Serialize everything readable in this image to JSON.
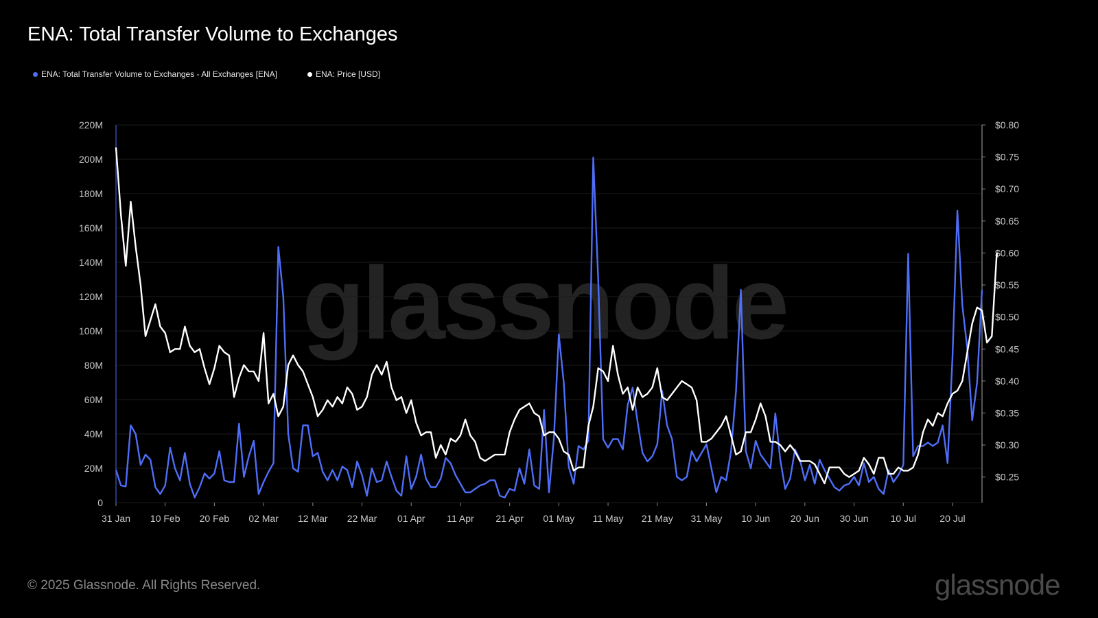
{
  "title": "ENA: Total Transfer Volume to Exchanges",
  "legend": [
    {
      "label": "ENA: Total Transfer Volume to Exchanges - All Exchanges [ENA]",
      "color": "#4f6ef7"
    },
    {
      "label": "ENA: Price [USD]",
      "color": "#ffffff"
    }
  ],
  "footer": "© 2025 Glassnode. All Rights Reserved.",
  "brand": "glassnode",
  "watermark": "glassnode",
  "chart_data": {
    "type": "line",
    "title": "ENA: Total Transfer Volume to Exchanges",
    "x_tick_labels": [
      "31 Jan",
      "10 Feb",
      "20 Feb",
      "02 Mar",
      "12 Mar",
      "22 Mar",
      "01 Apr",
      "11 Apr",
      "21 Apr",
      "01 May",
      "11 May",
      "21 May",
      "31 May",
      "10 Jun",
      "20 Jun",
      "30 Jun",
      "10 Jul",
      "20 Jul"
    ],
    "x_start": "2025-01-31",
    "x_end": "2025-07-27",
    "y_left_ticks": [
      "0",
      "20M",
      "40M",
      "60M",
      "80M",
      "100M",
      "120M",
      "140M",
      "160M",
      "180M",
      "200M",
      "220M"
    ],
    "y_left_range": [
      0,
      220
    ],
    "y_left_unit": "M ENA",
    "y_right_ticks": [
      "$0.25",
      "$0.30",
      "$0.35",
      "$0.40",
      "$0.45",
      "$0.50",
      "$0.55",
      "$0.60",
      "$0.65",
      "$0.70",
      "$0.75",
      "$0.80"
    ],
    "y_right_range": [
      0.21,
      0.8
    ],
    "grid": true,
    "series": [
      {
        "name": "ENA: Total Transfer Volume to Exchanges - All Exchanges [ENA]",
        "axis": "left",
        "color": "#4f6ef7",
        "values": [
          19,
          10,
          9.5,
          45,
          40,
          22,
          28,
          25,
          9,
          5,
          10,
          32,
          20,
          13,
          29,
          11,
          3,
          9,
          17,
          14,
          17,
          30,
          13,
          12,
          12,
          46,
          15,
          27,
          36,
          5,
          12,
          18,
          23,
          149,
          120,
          40,
          20,
          18,
          45,
          45,
          27,
          29,
          18,
          13,
          19,
          13,
          21,
          19,
          9,
          24,
          16,
          4,
          20,
          12,
          13,
          24,
          15,
          7,
          4,
          27,
          8,
          15,
          28,
          14,
          9,
          9,
          14,
          26,
          23,
          16,
          11,
          6,
          6,
          8,
          10,
          11,
          13,
          13,
          4,
          3,
          8,
          7,
          20,
          11,
          31,
          10,
          8,
          54,
          6,
          38,
          98,
          70,
          21,
          11,
          33,
          31,
          36,
          201,
          130,
          37,
          32,
          37,
          37,
          31,
          57,
          67,
          47,
          29,
          24,
          27,
          34,
          65,
          45,
          37,
          15,
          13,
          15,
          30,
          24,
          29,
          34,
          20,
          6,
          15,
          13,
          30,
          65,
          124,
          30,
          20,
          36,
          28,
          24,
          20,
          52,
          25,
          8,
          14,
          31,
          25,
          13,
          22,
          11,
          25,
          19,
          14,
          9,
          7,
          10,
          11,
          15,
          10,
          23,
          12,
          15,
          8,
          5,
          19,
          12,
          16,
          22,
          145,
          27,
          33,
          33,
          35,
          33,
          35,
          45,
          23,
          85,
          170,
          115,
          90,
          48,
          70,
          124
        ]
      },
      {
        "name": "ENA: Price [USD]",
        "axis": "right",
        "color": "#ffffff",
        "values": [
          0.765,
          0.66,
          0.58,
          0.68,
          0.61,
          0.55,
          0.47,
          0.495,
          0.52,
          0.485,
          0.475,
          0.445,
          0.45,
          0.45,
          0.485,
          0.455,
          0.445,
          0.45,
          0.42,
          0.395,
          0.42,
          0.455,
          0.445,
          0.44,
          0.375,
          0.405,
          0.425,
          0.415,
          0.415,
          0.4,
          0.475,
          0.365,
          0.38,
          0.345,
          0.36,
          0.425,
          0.44,
          0.425,
          0.415,
          0.395,
          0.375,
          0.345,
          0.355,
          0.37,
          0.36,
          0.375,
          0.365,
          0.39,
          0.38,
          0.355,
          0.36,
          0.375,
          0.41,
          0.425,
          0.41,
          0.43,
          0.39,
          0.37,
          0.375,
          0.35,
          0.37,
          0.335,
          0.315,
          0.32,
          0.32,
          0.28,
          0.3,
          0.285,
          0.31,
          0.305,
          0.315,
          0.34,
          0.315,
          0.305,
          0.28,
          0.275,
          0.28,
          0.285,
          0.285,
          0.285,
          0.32,
          0.34,
          0.355,
          0.36,
          0.365,
          0.35,
          0.345,
          0.315,
          0.32,
          0.32,
          0.31,
          0.29,
          0.285,
          0.26,
          0.265,
          0.265,
          0.33,
          0.36,
          0.42,
          0.415,
          0.4,
          0.455,
          0.41,
          0.38,
          0.39,
          0.355,
          0.39,
          0.375,
          0.38,
          0.39,
          0.42,
          0.375,
          0.37,
          0.38,
          0.39,
          0.4,
          0.395,
          0.39,
          0.37,
          0.305,
          0.305,
          0.31,
          0.32,
          0.33,
          0.345,
          0.315,
          0.285,
          0.29,
          0.32,
          0.32,
          0.34,
          0.365,
          0.345,
          0.305,
          0.305,
          0.3,
          0.29,
          0.3,
          0.29,
          0.275,
          0.275,
          0.275,
          0.27,
          0.255,
          0.24,
          0.265,
          0.265,
          0.265,
          0.255,
          0.25,
          0.255,
          0.26,
          0.28,
          0.27,
          0.255,
          0.28,
          0.28,
          0.255,
          0.255,
          0.265,
          0.26,
          0.26,
          0.265,
          0.285,
          0.32,
          0.34,
          0.33,
          0.35,
          0.345,
          0.365,
          0.38,
          0.385,
          0.4,
          0.445,
          0.49,
          0.515,
          0.51,
          0.46,
          0.47,
          0.6
        ]
      }
    ]
  }
}
